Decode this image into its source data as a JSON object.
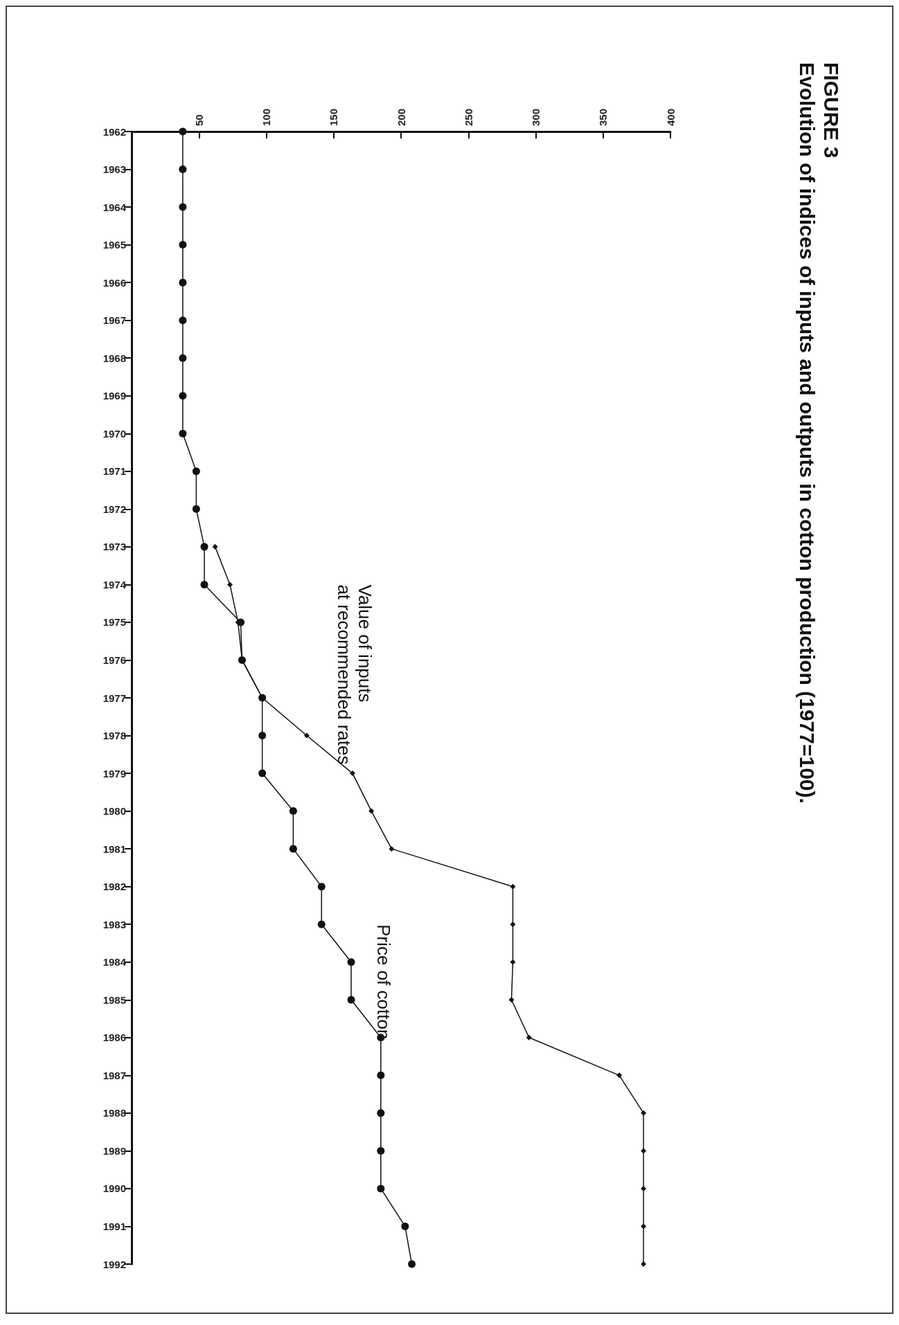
{
  "chart_data": {
    "type": "line",
    "title": "FIGURE 3",
    "subtitle": "Evolution of indices of inputs and outputs in cotton production (1977=100).",
    "categories": [
      "1962",
      "1963",
      "1964",
      "1965",
      "1966",
      "1967",
      "1968",
      "1969",
      "1970",
      "1971",
      "1972",
      "1973",
      "1974",
      "1975",
      "1976",
      "1977",
      "1978",
      "1979",
      "1980",
      "1981",
      "1982",
      "1983",
      "1984",
      "1985",
      "1986",
      "1987",
      "1988",
      "1989",
      "1990",
      "1991",
      "1992"
    ],
    "series": [
      {
        "name": "Value of inputs at recommended rates",
        "color": "#111111",
        "marker": "diamond",
        "values": [
          null,
          null,
          null,
          null,
          null,
          null,
          null,
          null,
          null,
          null,
          null,
          62,
          73,
          79,
          82,
          97,
          130,
          164,
          178,
          193,
          283,
          283,
          283,
          282,
          295,
          362,
          380,
          380,
          380,
          380,
          380
        ]
      },
      {
        "name": "Price of cotton",
        "color": "#111111",
        "marker": "circle",
        "values": [
          38,
          38,
          38,
          38,
          38,
          38,
          38,
          38,
          38,
          48,
          48,
          54,
          54,
          81,
          82,
          97,
          97,
          97,
          120,
          120,
          141,
          141,
          163,
          163,
          185,
          185,
          185,
          185,
          185,
          203,
          208
        ]
      }
    ],
    "orientation": "horizontal",
    "xlim": [
      0,
      400
    ],
    "xticks": [
      50,
      100,
      150,
      200,
      250,
      300,
      350,
      400
    ],
    "grid": false,
    "legend": false,
    "line_style": "solid"
  }
}
